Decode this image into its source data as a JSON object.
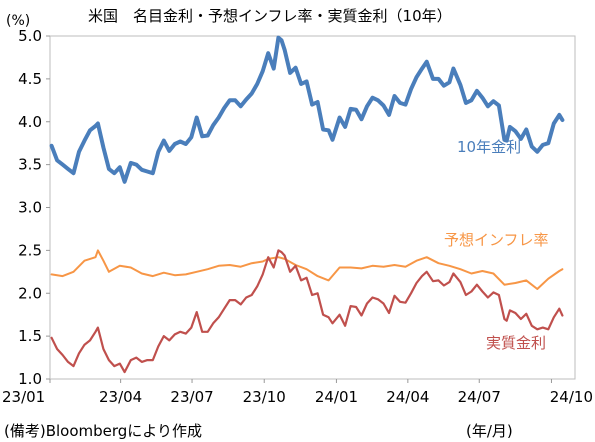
{
  "chart_data": {
    "type": "line",
    "title": "米国　名目金利・予想インフレ率・実質金利（10年）",
    "ylabel": "(%)",
    "xlabel": "(年/月)",
    "source": "(備考)Bloombergにより作成",
    "ylim": [
      1.0,
      5.0
    ],
    "yticks": [
      "1.0",
      "1.5",
      "2.0",
      "2.5",
      "3.0",
      "3.5",
      "4.0",
      "4.5",
      "5.0"
    ],
    "xlim": [
      "2023-01-01",
      "2024-10-31"
    ],
    "xticks": [
      {
        "date": "2023-01-01",
        "label": "23/01"
      },
      {
        "date": "2023-04-01",
        "label": "23/04"
      },
      {
        "date": "2023-07-01",
        "label": "23/07"
      },
      {
        "date": "2023-10-01",
        "label": "23/10"
      },
      {
        "date": "2024-01-01",
        "label": "24/01"
      },
      {
        "date": "2024-04-01",
        "label": "24/04"
      },
      {
        "date": "2024-07-01",
        "label": "24/07"
      },
      {
        "date": "2024-10-01",
        "label": "24/10"
      }
    ],
    "grid": false,
    "series": [
      {
        "name": "10年金利",
        "color": "#4a7ebb",
        "points": [
          [
            "2023-01-03",
            3.72
          ],
          [
            "2023-01-10",
            3.55
          ],
          [
            "2023-01-17",
            3.5
          ],
          [
            "2023-01-24",
            3.45
          ],
          [
            "2023-01-31",
            3.4
          ],
          [
            "2023-02-07",
            3.65
          ],
          [
            "2023-02-14",
            3.78
          ],
          [
            "2023-02-21",
            3.9
          ],
          [
            "2023-02-28",
            3.95
          ],
          [
            "2023-03-03",
            3.98
          ],
          [
            "2023-03-10",
            3.7
          ],
          [
            "2023-03-17",
            3.45
          ],
          [
            "2023-03-24",
            3.4
          ],
          [
            "2023-03-31",
            3.47
          ],
          [
            "2023-04-06",
            3.3
          ],
          [
            "2023-04-14",
            3.52
          ],
          [
            "2023-04-21",
            3.5
          ],
          [
            "2023-04-28",
            3.44
          ],
          [
            "2023-05-05",
            3.42
          ],
          [
            "2023-05-12",
            3.4
          ],
          [
            "2023-05-19",
            3.65
          ],
          [
            "2023-05-26",
            3.78
          ],
          [
            "2023-06-02",
            3.66
          ],
          [
            "2023-06-09",
            3.74
          ],
          [
            "2023-06-16",
            3.77
          ],
          [
            "2023-06-23",
            3.74
          ],
          [
            "2023-06-30",
            3.82
          ],
          [
            "2023-07-07",
            4.05
          ],
          [
            "2023-07-14",
            3.83
          ],
          [
            "2023-07-21",
            3.84
          ],
          [
            "2023-07-28",
            3.96
          ],
          [
            "2023-08-04",
            4.05
          ],
          [
            "2023-08-11",
            4.16
          ],
          [
            "2023-08-18",
            4.25
          ],
          [
            "2023-08-25",
            4.25
          ],
          [
            "2023-09-01",
            4.18
          ],
          [
            "2023-09-08",
            4.26
          ],
          [
            "2023-09-15",
            4.33
          ],
          [
            "2023-09-22",
            4.44
          ],
          [
            "2023-09-29",
            4.59
          ],
          [
            "2023-10-06",
            4.8
          ],
          [
            "2023-10-13",
            4.62
          ],
          [
            "2023-10-19",
            4.98
          ],
          [
            "2023-10-23",
            4.95
          ],
          [
            "2023-10-27",
            4.84
          ],
          [
            "2023-11-03",
            4.57
          ],
          [
            "2023-11-10",
            4.63
          ],
          [
            "2023-11-17",
            4.44
          ],
          [
            "2023-11-24",
            4.47
          ],
          [
            "2023-12-01",
            4.2
          ],
          [
            "2023-12-08",
            4.23
          ],
          [
            "2023-12-15",
            3.91
          ],
          [
            "2023-12-22",
            3.9
          ],
          [
            "2023-12-27",
            3.79
          ],
          [
            "2024-01-05",
            4.05
          ],
          [
            "2024-01-12",
            3.94
          ],
          [
            "2024-01-19",
            4.15
          ],
          [
            "2024-01-26",
            4.14
          ],
          [
            "2024-02-02",
            4.03
          ],
          [
            "2024-02-09",
            4.18
          ],
          [
            "2024-02-16",
            4.28
          ],
          [
            "2024-02-23",
            4.25
          ],
          [
            "2024-03-01",
            4.19
          ],
          [
            "2024-03-08",
            4.08
          ],
          [
            "2024-03-15",
            4.3
          ],
          [
            "2024-03-22",
            4.22
          ],
          [
            "2024-03-29",
            4.2
          ],
          [
            "2024-04-05",
            4.38
          ],
          [
            "2024-04-12",
            4.52
          ],
          [
            "2024-04-19",
            4.62
          ],
          [
            "2024-04-25",
            4.7
          ],
          [
            "2024-05-03",
            4.5
          ],
          [
            "2024-05-10",
            4.5
          ],
          [
            "2024-05-17",
            4.42
          ],
          [
            "2024-05-24",
            4.46
          ],
          [
            "2024-05-29",
            4.62
          ],
          [
            "2024-06-07",
            4.43
          ],
          [
            "2024-06-14",
            4.22
          ],
          [
            "2024-06-21",
            4.25
          ],
          [
            "2024-06-28",
            4.36
          ],
          [
            "2024-07-05",
            4.28
          ],
          [
            "2024-07-12",
            4.18
          ],
          [
            "2024-07-19",
            4.24
          ],
          [
            "2024-07-26",
            4.19
          ],
          [
            "2024-08-02",
            3.79
          ],
          [
            "2024-08-05",
            3.78
          ],
          [
            "2024-08-09",
            3.94
          ],
          [
            "2024-08-16",
            3.89
          ],
          [
            "2024-08-23",
            3.8
          ],
          [
            "2024-08-30",
            3.91
          ],
          [
            "2024-09-06",
            3.71
          ],
          [
            "2024-09-13",
            3.65
          ],
          [
            "2024-09-20",
            3.73
          ],
          [
            "2024-09-27",
            3.75
          ],
          [
            "2024-10-04",
            3.98
          ],
          [
            "2024-10-11",
            4.08
          ],
          [
            "2024-10-15",
            4.02
          ]
        ]
      },
      {
        "name": "予想インフレ率",
        "color": "#f79646",
        "points": [
          [
            "2023-01-03",
            2.22
          ],
          [
            "2023-01-17",
            2.2
          ],
          [
            "2023-01-31",
            2.25
          ],
          [
            "2023-02-14",
            2.38
          ],
          [
            "2023-02-28",
            2.42
          ],
          [
            "2023-03-03",
            2.5
          ],
          [
            "2023-03-10",
            2.38
          ],
          [
            "2023-03-17",
            2.25
          ],
          [
            "2023-03-31",
            2.32
          ],
          [
            "2023-04-14",
            2.3
          ],
          [
            "2023-04-28",
            2.23
          ],
          [
            "2023-05-12",
            2.2
          ],
          [
            "2023-05-26",
            2.24
          ],
          [
            "2023-06-09",
            2.21
          ],
          [
            "2023-06-23",
            2.22
          ],
          [
            "2023-07-07",
            2.25
          ],
          [
            "2023-07-21",
            2.28
          ],
          [
            "2023-08-04",
            2.32
          ],
          [
            "2023-08-18",
            2.33
          ],
          [
            "2023-09-01",
            2.31
          ],
          [
            "2023-09-15",
            2.35
          ],
          [
            "2023-09-29",
            2.37
          ],
          [
            "2023-10-06",
            2.4
          ],
          [
            "2023-10-19",
            2.42
          ],
          [
            "2023-10-27",
            2.4
          ],
          [
            "2023-11-10",
            2.33
          ],
          [
            "2023-11-24",
            2.28
          ],
          [
            "2023-12-08",
            2.2
          ],
          [
            "2023-12-22",
            2.15
          ],
          [
            "2024-01-05",
            2.3
          ],
          [
            "2024-01-19",
            2.3
          ],
          [
            "2024-02-02",
            2.29
          ],
          [
            "2024-02-16",
            2.32
          ],
          [
            "2024-03-01",
            2.31
          ],
          [
            "2024-03-15",
            2.33
          ],
          [
            "2024-03-29",
            2.31
          ],
          [
            "2024-04-12",
            2.38
          ],
          [
            "2024-04-25",
            2.42
          ],
          [
            "2024-05-10",
            2.35
          ],
          [
            "2024-05-24",
            2.32
          ],
          [
            "2024-06-07",
            2.28
          ],
          [
            "2024-06-21",
            2.23
          ],
          [
            "2024-07-05",
            2.26
          ],
          [
            "2024-07-19",
            2.23
          ],
          [
            "2024-08-02",
            2.1
          ],
          [
            "2024-08-16",
            2.12
          ],
          [
            "2024-08-30",
            2.15
          ],
          [
            "2024-09-13",
            2.05
          ],
          [
            "2024-09-27",
            2.17
          ],
          [
            "2024-10-11",
            2.26
          ],
          [
            "2024-10-15",
            2.28
          ]
        ]
      },
      {
        "name": "実質金利",
        "color": "#c0504d",
        "points": [
          [
            "2023-01-03",
            1.48
          ],
          [
            "2023-01-10",
            1.35
          ],
          [
            "2023-01-17",
            1.28
          ],
          [
            "2023-01-24",
            1.2
          ],
          [
            "2023-01-31",
            1.15
          ],
          [
            "2023-02-07",
            1.3
          ],
          [
            "2023-02-14",
            1.4
          ],
          [
            "2023-02-21",
            1.45
          ],
          [
            "2023-02-28",
            1.55
          ],
          [
            "2023-03-03",
            1.6
          ],
          [
            "2023-03-10",
            1.35
          ],
          [
            "2023-03-17",
            1.22
          ],
          [
            "2023-03-24",
            1.15
          ],
          [
            "2023-03-31",
            1.18
          ],
          [
            "2023-04-06",
            1.08
          ],
          [
            "2023-04-14",
            1.22
          ],
          [
            "2023-04-21",
            1.25
          ],
          [
            "2023-04-28",
            1.2
          ],
          [
            "2023-05-05",
            1.22
          ],
          [
            "2023-05-12",
            1.22
          ],
          [
            "2023-05-19",
            1.38
          ],
          [
            "2023-05-26",
            1.5
          ],
          [
            "2023-06-02",
            1.45
          ],
          [
            "2023-06-09",
            1.52
          ],
          [
            "2023-06-16",
            1.55
          ],
          [
            "2023-06-23",
            1.53
          ],
          [
            "2023-06-30",
            1.6
          ],
          [
            "2023-07-07",
            1.78
          ],
          [
            "2023-07-14",
            1.55
          ],
          [
            "2023-07-21",
            1.55
          ],
          [
            "2023-07-28",
            1.65
          ],
          [
            "2023-08-04",
            1.72
          ],
          [
            "2023-08-11",
            1.82
          ],
          [
            "2023-08-18",
            1.92
          ],
          [
            "2023-08-25",
            1.92
          ],
          [
            "2023-09-01",
            1.87
          ],
          [
            "2023-09-08",
            1.95
          ],
          [
            "2023-09-15",
            1.98
          ],
          [
            "2023-09-22",
            2.08
          ],
          [
            "2023-09-29",
            2.22
          ],
          [
            "2023-10-06",
            2.42
          ],
          [
            "2023-10-13",
            2.3
          ],
          [
            "2023-10-19",
            2.5
          ],
          [
            "2023-10-23",
            2.48
          ],
          [
            "2023-10-27",
            2.44
          ],
          [
            "2023-11-03",
            2.25
          ],
          [
            "2023-11-10",
            2.32
          ],
          [
            "2023-11-17",
            2.15
          ],
          [
            "2023-11-24",
            2.18
          ],
          [
            "2023-12-01",
            1.98
          ],
          [
            "2023-12-08",
            2.0
          ],
          [
            "2023-12-15",
            1.75
          ],
          [
            "2023-12-22",
            1.72
          ],
          [
            "2023-12-27",
            1.65
          ],
          [
            "2024-01-05",
            1.75
          ],
          [
            "2024-01-12",
            1.62
          ],
          [
            "2024-01-19",
            1.85
          ],
          [
            "2024-01-26",
            1.84
          ],
          [
            "2024-02-02",
            1.74
          ],
          [
            "2024-02-09",
            1.88
          ],
          [
            "2024-02-16",
            1.95
          ],
          [
            "2024-02-23",
            1.93
          ],
          [
            "2024-03-01",
            1.88
          ],
          [
            "2024-03-08",
            1.77
          ],
          [
            "2024-03-15",
            1.97
          ],
          [
            "2024-03-22",
            1.9
          ],
          [
            "2024-03-29",
            1.89
          ],
          [
            "2024-04-05",
            2.0
          ],
          [
            "2024-04-12",
            2.12
          ],
          [
            "2024-04-19",
            2.2
          ],
          [
            "2024-04-25",
            2.25
          ],
          [
            "2024-05-03",
            2.14
          ],
          [
            "2024-05-10",
            2.15
          ],
          [
            "2024-05-17",
            2.09
          ],
          [
            "2024-05-24",
            2.13
          ],
          [
            "2024-05-29",
            2.23
          ],
          [
            "2024-06-07",
            2.13
          ],
          [
            "2024-06-14",
            1.98
          ],
          [
            "2024-06-21",
            2.02
          ],
          [
            "2024-06-28",
            2.1
          ],
          [
            "2024-07-05",
            2.02
          ],
          [
            "2024-07-12",
            1.95
          ],
          [
            "2024-07-19",
            2.01
          ],
          [
            "2024-07-26",
            1.98
          ],
          [
            "2024-08-02",
            1.7
          ],
          [
            "2024-08-05",
            1.68
          ],
          [
            "2024-08-09",
            1.8
          ],
          [
            "2024-08-16",
            1.77
          ],
          [
            "2024-08-23",
            1.7
          ],
          [
            "2024-08-30",
            1.76
          ],
          [
            "2024-09-06",
            1.62
          ],
          [
            "2024-09-13",
            1.58
          ],
          [
            "2024-09-20",
            1.6
          ],
          [
            "2024-09-27",
            1.58
          ],
          [
            "2024-10-04",
            1.72
          ],
          [
            "2024-10-11",
            1.82
          ],
          [
            "2024-10-15",
            1.74
          ]
        ]
      }
    ]
  }
}
